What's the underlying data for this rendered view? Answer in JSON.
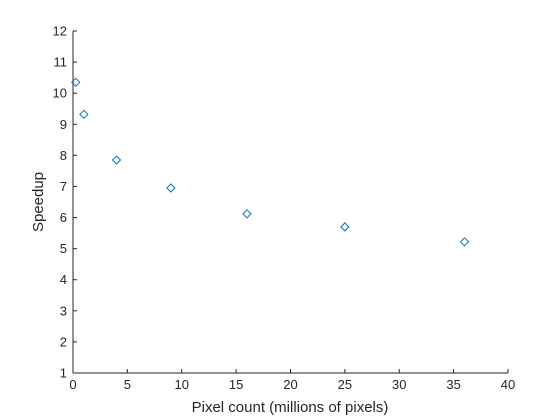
{
  "chart_data": {
    "type": "scatter",
    "title": "",
    "xlabel": "Pixel count (millions of pixels)",
    "ylabel": "Speedup",
    "xlim": [
      0,
      40
    ],
    "ylim": [
      1,
      12
    ],
    "xticks": [
      0,
      5,
      10,
      15,
      20,
      25,
      30,
      35,
      40
    ],
    "yticks": [
      1,
      2,
      3,
      4,
      5,
      6,
      7,
      8,
      9,
      10,
      11,
      12
    ],
    "grid": false,
    "marker": "diamond",
    "marker_color": "#0072BD",
    "series": [
      {
        "x": [
          0.25,
          1,
          4,
          9,
          16,
          25,
          36
        ],
        "y": [
          10.35,
          9.32,
          7.85,
          6.95,
          6.12,
          5.7,
          5.22
        ]
      }
    ]
  }
}
